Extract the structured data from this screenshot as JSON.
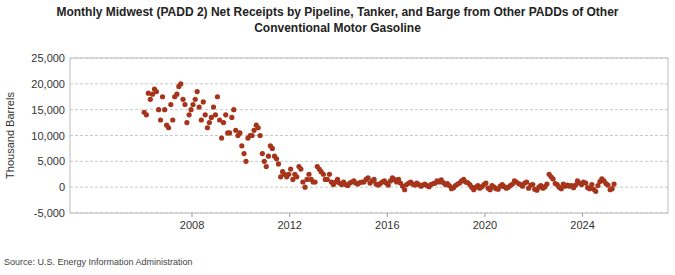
{
  "chart_data": {
    "type": "scatter",
    "title": "Monthly Midwest (PADD 2) Net Receipts by Pipeline, Tanker, and Barge from Other PADDs of Other Conventional Motor Gasoline",
    "y_label": "Thousand Barrels",
    "source": "Source: U.S. Energy Information Administration",
    "color": "#a6341b",
    "marker": "circle",
    "grid": true,
    "xlim": [
      2003,
      2027.5
    ],
    "xticks": [
      2008,
      2012,
      2016,
      2020,
      2024
    ],
    "ylim": [
      -5000,
      25000
    ],
    "yticks": [
      {
        "value": -5000,
        "label": "-5,000"
      },
      {
        "value": 0,
        "label": "0"
      },
      {
        "value": 5000,
        "label": "5,000"
      },
      {
        "value": 10000,
        "label": "10,000"
      },
      {
        "value": 15000,
        "label": "15,000"
      },
      {
        "value": 20000,
        "label": "20,000"
      },
      {
        "value": 25000,
        "label": "25,000"
      }
    ],
    "x": [
      2006.04,
      2006.13,
      2006.21,
      2006.29,
      2006.38,
      2006.46,
      2006.54,
      2006.63,
      2006.71,
      2006.79,
      2006.88,
      2006.96,
      2007.04,
      2007.13,
      2007.21,
      2007.29,
      2007.38,
      2007.46,
      2007.54,
      2007.63,
      2007.71,
      2007.79,
      2007.88,
      2007.96,
      2008.04,
      2008.13,
      2008.21,
      2008.29,
      2008.38,
      2008.46,
      2008.54,
      2008.63,
      2008.71,
      2008.79,
      2008.88,
      2008.96,
      2009.04,
      2009.13,
      2009.21,
      2009.29,
      2009.38,
      2009.46,
      2009.54,
      2009.63,
      2009.71,
      2009.79,
      2009.88,
      2009.96,
      2010.04,
      2010.13,
      2010.21,
      2010.29,
      2010.38,
      2010.46,
      2010.54,
      2010.63,
      2010.71,
      2010.79,
      2010.88,
      2010.96,
      2011.04,
      2011.13,
      2011.21,
      2011.29,
      2011.38,
      2011.46,
      2011.54,
      2011.63,
      2011.71,
      2011.79,
      2011.88,
      2011.96,
      2012.04,
      2012.13,
      2012.21,
      2012.29,
      2012.38,
      2012.46,
      2012.54,
      2012.63,
      2012.71,
      2012.79,
      2012.88,
      2012.96,
      2013.04,
      2013.13,
      2013.21,
      2013.29,
      2013.38,
      2013.46,
      2013.54,
      2013.63,
      2013.71,
      2013.79,
      2013.88,
      2013.96,
      2014.04,
      2014.13,
      2014.21,
      2014.29,
      2014.38,
      2014.46,
      2014.54,
      2014.63,
      2014.71,
      2014.79,
      2014.88,
      2014.96,
      2015.04,
      2015.13,
      2015.21,
      2015.29,
      2015.38,
      2015.46,
      2015.54,
      2015.63,
      2015.71,
      2015.79,
      2015.88,
      2015.96,
      2016.04,
      2016.13,
      2016.21,
      2016.29,
      2016.38,
      2016.46,
      2016.54,
      2016.63,
      2016.71,
      2016.79,
      2016.88,
      2016.96,
      2017.04,
      2017.13,
      2017.21,
      2017.29,
      2017.38,
      2017.46,
      2017.54,
      2017.63,
      2017.71,
      2017.79,
      2017.88,
      2017.96,
      2018.04,
      2018.13,
      2018.21,
      2018.29,
      2018.38,
      2018.46,
      2018.54,
      2018.63,
      2018.71,
      2018.79,
      2018.88,
      2018.96,
      2019.04,
      2019.13,
      2019.21,
      2019.29,
      2019.38,
      2019.46,
      2019.54,
      2019.63,
      2019.71,
      2019.79,
      2019.88,
      2019.96,
      2020.04,
      2020.13,
      2020.21,
      2020.29,
      2020.38,
      2020.46,
      2020.54,
      2020.63,
      2020.71,
      2020.79,
      2020.88,
      2020.96,
      2021.04,
      2021.13,
      2021.21,
      2021.29,
      2021.38,
      2021.46,
      2021.54,
      2021.63,
      2021.71,
      2021.79,
      2021.88,
      2021.96,
      2022.04,
      2022.13,
      2022.21,
      2022.29,
      2022.38,
      2022.46,
      2022.54,
      2022.63,
      2022.71,
      2022.79,
      2022.88,
      2022.96,
      2023.04,
      2023.13,
      2023.21,
      2023.29,
      2023.38,
      2023.46,
      2023.54,
      2023.63,
      2023.71,
      2023.79,
      2023.88,
      2023.96,
      2024.04,
      2024.13,
      2024.21,
      2024.29,
      2024.38,
      2024.46,
      2024.54,
      2024.63,
      2024.71,
      2024.79,
      2024.88,
      2024.96,
      2025.04,
      2025.13,
      2025.21,
      2025.29
    ],
    "values": [
      14500,
      14000,
      18200,
      17000,
      18000,
      19000,
      18500,
      15000,
      13000,
      17500,
      15000,
      12000,
      11500,
      16000,
      13000,
      17500,
      18000,
      19500,
      20000,
      17000,
      16000,
      12500,
      14000,
      15000,
      16000,
      17000,
      18500,
      15500,
      13000,
      16500,
      14000,
      11500,
      12500,
      13500,
      15500,
      14000,
      17500,
      13000,
      9500,
      12500,
      14000,
      10500,
      10500,
      13500,
      15000,
      11000,
      10000,
      10500,
      8000,
      6500,
      5000,
      9500,
      10000,
      10000,
      11000,
      12000,
      11500,
      10000,
      6500,
      5000,
      4000,
      6000,
      8000,
      7500,
      6000,
      5500,
      4500,
      2000,
      3000,
      2500,
      2000,
      2500,
      3500,
      1500,
      2500,
      2000,
      4000,
      3500,
      1000,
      0,
      1500,
      2500,
      1500,
      1000,
      1000,
      4000,
      3500,
      3000,
      2500,
      1500,
      1500,
      2500,
      1000,
      500,
      1000,
      1500,
      800,
      500,
      1000,
      500,
      300,
      800,
      1000,
      1200,
      800,
      600,
      900,
      1000,
      1000,
      1500,
      1800,
      800,
      1200,
      1500,
      600,
      400,
      700,
      1000,
      1200,
      800,
      400,
      1200,
      1800,
      1500,
      1000,
      1500,
      800,
      200,
      -500,
      500,
      800,
      1000,
      600,
      400,
      800,
      500,
      200,
      400,
      600,
      300,
      100,
      500,
      700,
      800,
      1200,
      1000,
      1400,
      900,
      500,
      700,
      300,
      -300,
      -100,
      300,
      600,
      800,
      1200,
      1500,
      1000,
      900,
      500,
      0,
      -500,
      0,
      300,
      -200,
      100,
      500,
      800,
      -200,
      -500,
      300,
      0,
      -300,
      -400,
      200,
      500,
      100,
      -200,
      0,
      300,
      600,
      1200,
      1000,
      700,
      500,
      200,
      800,
      1000,
      -200,
      400,
      500,
      -400,
      -600,
      0,
      300,
      -200,
      100,
      600,
      2500,
      2000,
      1600,
      700,
      500,
      0,
      -300,
      600,
      200,
      400,
      200,
      300,
      -100,
      400,
      1200,
      800,
      500,
      1000,
      800,
      -100,
      -300,
      500,
      -400,
      -800,
      300,
      1100,
      1600,
      1200,
      700,
      400,
      -500,
      -300,
      600
    ]
  }
}
